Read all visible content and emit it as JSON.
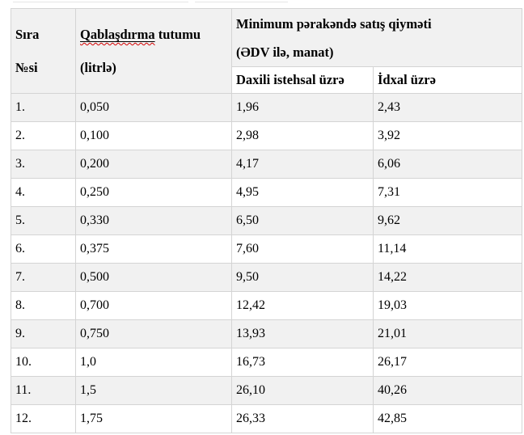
{
  "table": {
    "header": {
      "sira_line1": "Sıra",
      "sira_line2": "№si",
      "capacity_word": "Qablaşdırma",
      "capacity_rest": " tutumu",
      "capacity_line2": "(litrlə)",
      "price_line1": "Minimum pərakəndə satış qiyməti",
      "price_line2": "(ƏDV ilə, manat)",
      "domestic": "Daxili istehsal üzrə",
      "import": "İdxal üzrə"
    },
    "rows": [
      {
        "no": "1.",
        "capacity": "0,050",
        "domestic": "1,96",
        "import": "2,43"
      },
      {
        "no": "2.",
        "capacity": "0,100",
        "domestic": "2,98",
        "import": "3,92"
      },
      {
        "no": "3.",
        "capacity": "0,200",
        "domestic": "4,17",
        "import": "6,06"
      },
      {
        "no": "4.",
        "capacity": "0,250",
        "domestic": "4,95",
        "import": "7,31"
      },
      {
        "no": "5.",
        "capacity": "0,330",
        "domestic": "6,50",
        "import": "9,62"
      },
      {
        "no": "6.",
        "capacity": "0,375",
        "domestic": "7,60",
        "import": "11,14"
      },
      {
        "no": "7.",
        "capacity": "0,500",
        "domestic": "9,50",
        "import": "14,22"
      },
      {
        "no": "8.",
        "capacity": "0,700",
        "domestic": "12,42",
        "import": "19,03"
      },
      {
        "no": "9.",
        "capacity": "0,750",
        "domestic": "13,93",
        "import": "21,01"
      },
      {
        "no": "10.",
        "capacity": "1,0",
        "domestic": "16,73",
        "import": "26,17"
      },
      {
        "no": "11.",
        "capacity": "1,5",
        "domestic": "26,10",
        "import": "40,26"
      },
      {
        "no": "12.",
        "capacity": "1,75",
        "domestic": "26,33",
        "import": "42,85"
      }
    ]
  },
  "colors": {
    "row_alt_background": "#f1f1f1",
    "row_background": "#ffffff",
    "border": "#d4d4d4",
    "text": "#000000",
    "spellcheck_underline": "#d40000"
  }
}
